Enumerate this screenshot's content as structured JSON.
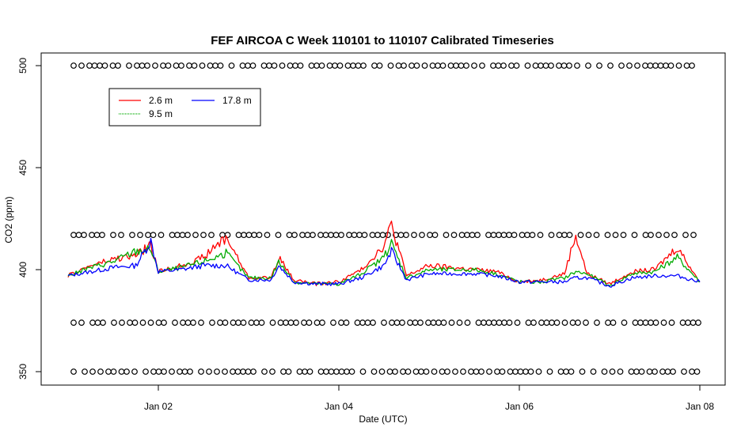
{
  "chart_data": {
    "type": "line",
    "title": "FEF AIRCOA C  Week 110101 to 110107  Calibrated Timeseries",
    "xlabel": "Date (UTC)",
    "ylabel": "CO2 (ppm)",
    "xlim": [
      "2011-01-01T00:00",
      "2011-01-08T00:00"
    ],
    "ylim": [
      350,
      500
    ],
    "x_ticks": [
      "Jan 02",
      "Jan 04",
      "Jan 06",
      "Jan 08"
    ],
    "x_tick_dates": [
      "2011-01-02",
      "2011-01-04",
      "2011-01-06",
      "2011-01-08"
    ],
    "y_ticks": [
      350,
      400,
      450,
      500
    ],
    "grid": false,
    "legend_position": "top-left",
    "legend": [
      {
        "label": "2.6 m",
        "color": "#ff0000"
      },
      {
        "label": "9.5 m",
        "color": "#00aa00"
      },
      {
        "label": "17.8 m",
        "color": "#0000ff"
      }
    ],
    "series": [
      {
        "name": "17.8 m",
        "color": "#0000ff",
        "x": [
          "2011-01-01T00:00",
          "2011-01-01T06:00",
          "2011-01-01T12:00",
          "2011-01-01T18:00",
          "2011-01-01T22:00",
          "2011-01-02T00:00",
          "2011-01-02T06:00",
          "2011-01-02T12:00",
          "2011-01-02T18:00",
          "2011-01-03T00:00",
          "2011-01-03T06:00",
          "2011-01-03T08:00",
          "2011-01-03T12:00",
          "2011-01-03T18:00",
          "2011-01-04T00:00",
          "2011-01-04T06:00",
          "2011-01-04T12:00",
          "2011-01-04T14:00",
          "2011-01-04T18:00",
          "2011-01-05T00:00",
          "2011-01-05T06:00",
          "2011-01-05T12:00",
          "2011-01-05T18:00",
          "2011-01-06T00:00",
          "2011-01-06T06:00",
          "2011-01-06T12:00",
          "2011-01-06T15:00",
          "2011-01-06T18:00",
          "2011-01-07T00:00",
          "2011-01-07T06:00",
          "2011-01-07T12:00",
          "2011-01-07T18:00",
          "2011-01-08T00:00"
        ],
        "values": [
          397,
          399,
          401,
          402,
          414,
          399,
          400,
          402,
          402,
          395,
          395,
          402,
          394,
          393,
          393,
          396,
          402,
          409,
          395,
          398,
          398,
          398,
          397,
          394,
          394,
          394,
          396,
          396,
          392,
          396,
          397,
          397,
          394
        ]
      },
      {
        "name": "9.5 m",
        "color": "#00aa00",
        "x": [
          "2011-01-01T00:00",
          "2011-01-01T06:00",
          "2011-01-01T12:00",
          "2011-01-01T18:00",
          "2011-01-01T22:00",
          "2011-01-02T00:00",
          "2011-01-02T06:00",
          "2011-01-02T12:00",
          "2011-01-02T18:00",
          "2011-01-03T00:00",
          "2011-01-03T06:00",
          "2011-01-03T08:00",
          "2011-01-03T12:00",
          "2011-01-03T18:00",
          "2011-01-04T00:00",
          "2011-01-04T06:00",
          "2011-01-04T12:00",
          "2011-01-04T14:00",
          "2011-01-04T18:00",
          "2011-01-05T00:00",
          "2011-01-05T06:00",
          "2011-01-05T12:00",
          "2011-01-05T18:00",
          "2011-01-06T00:00",
          "2011-01-06T06:00",
          "2011-01-06T12:00",
          "2011-01-06T15:00",
          "2011-01-06T18:00",
          "2011-01-07T00:00",
          "2011-01-07T06:00",
          "2011-01-07T12:00",
          "2011-01-07T18:00",
          "2011-01-08T00:00"
        ],
        "values": [
          397,
          401,
          404,
          409,
          410,
          399,
          401,
          404,
          408,
          396,
          396,
          404,
          394,
          393,
          393,
          398,
          406,
          413,
          396,
          400,
          400,
          400,
          398,
          394,
          394,
          396,
          399,
          398,
          392,
          398,
          399,
          406,
          394
        ]
      },
      {
        "name": "2.6 m",
        "color": "#ff0000",
        "x": [
          "2011-01-01T00:00",
          "2011-01-01T06:00",
          "2011-01-01T12:00",
          "2011-01-01T18:00",
          "2011-01-01T22:00",
          "2011-01-02T00:00",
          "2011-01-02T06:00",
          "2011-01-02T12:00",
          "2011-01-02T18:00",
          "2011-01-03T00:00",
          "2011-01-03T06:00",
          "2011-01-03T08:00",
          "2011-01-03T12:00",
          "2011-01-03T18:00",
          "2011-01-04T00:00",
          "2011-01-04T06:00",
          "2011-01-04T12:00",
          "2011-01-04T14:00",
          "2011-01-04T18:00",
          "2011-01-05T00:00",
          "2011-01-05T06:00",
          "2011-01-05T12:00",
          "2011-01-05T18:00",
          "2011-01-06T00:00",
          "2011-01-06T06:00",
          "2011-01-06T12:00",
          "2011-01-06T15:00",
          "2011-01-06T18:00",
          "2011-01-07T00:00",
          "2011-01-07T06:00",
          "2011-01-07T12:00",
          "2011-01-07T18:00",
          "2011-01-08T00:00"
        ],
        "values": [
          397,
          402,
          405,
          407,
          412,
          399,
          402,
          406,
          416,
          396,
          396,
          406,
          395,
          393,
          394,
          400,
          412,
          422,
          397,
          402,
          401,
          400,
          399,
          394,
          395,
          398,
          417,
          398,
          393,
          399,
          400,
          411,
          394
        ]
      }
    ],
    "marker_rows": [
      {
        "y": 500,
        "marker": "open-circle"
      },
      {
        "y": 417,
        "marker": "open-circle"
      },
      {
        "y": 374,
        "marker": "open-circle"
      },
      {
        "y": 350,
        "marker": "open-circle"
      }
    ]
  }
}
